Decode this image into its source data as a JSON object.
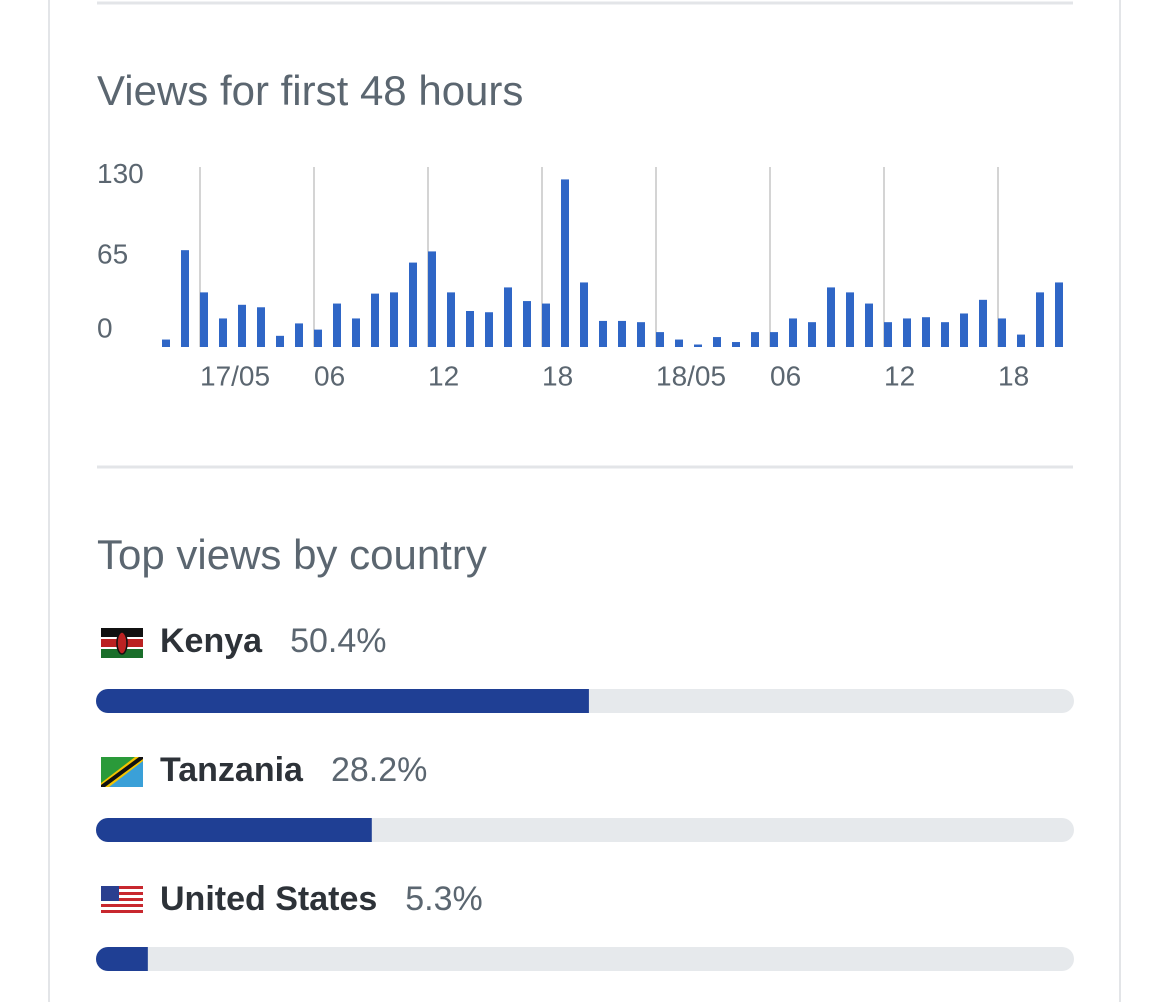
{
  "chart_data": [
    {
      "type": "bar",
      "title": "Views for first 48 hours",
      "categories": [
        null,
        null,
        "17/05",
        null,
        null,
        null,
        null,
        null,
        "06",
        null,
        null,
        null,
        null,
        null,
        "12",
        null,
        null,
        null,
        null,
        null,
        "18",
        null,
        null,
        null,
        null,
        null,
        "18/05",
        null,
        null,
        null,
        null,
        null,
        "06",
        null,
        null,
        null,
        null,
        null,
        "12",
        null,
        null,
        null,
        null,
        null,
        "18",
        null,
        null,
        null
      ],
      "values": [
        6,
        78,
        44,
        23,
        34,
        32,
        9,
        19,
        14,
        35,
        23,
        43,
        44,
        68,
        77,
        44,
        29,
        28,
        48,
        37,
        35,
        135,
        52,
        21,
        21,
        20,
        12,
        6,
        2,
        8,
        4,
        12,
        12,
        23,
        20,
        48,
        44,
        35,
        20,
        23,
        24,
        20,
        27,
        38,
        23,
        10,
        44,
        52
      ],
      "color": "#2f66c6",
      "ylim": [
        0,
        145
      ],
      "yticks": [
        0,
        65,
        130
      ],
      "grid": true
    },
    {
      "type": "hbar",
      "title": "Top views by country",
      "categories": [
        "Kenya",
        "Tanzania",
        "United States"
      ],
      "values": [
        50.4,
        28.2,
        5.3
      ],
      "value_labels": [
        "50.4%",
        "28.2%",
        "5.3%"
      ],
      "xlim": [
        0,
        100
      ],
      "color": "#1f3f94"
    }
  ]
}
